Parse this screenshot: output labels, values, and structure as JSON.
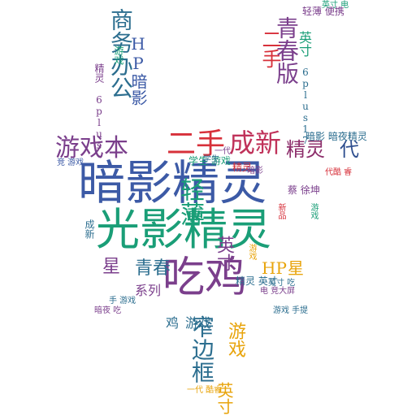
{
  "cloud": {
    "words": [
      {
        "text": "暗影精灵",
        "color": "#3c5aa6"
      },
      {
        "text": "光影精灵",
        "color": "#1a9e77"
      },
      {
        "text": "吃鸡",
        "color": "#7b3f8c"
      },
      {
        "text": "二手",
        "color": "#d7303a"
      },
      {
        "text": "成新",
        "color": "#c0325a"
      },
      {
        "text": "游戏本",
        "color": "#7b3f8c"
      },
      {
        "text": "精灵",
        "color": "#8c2d6a"
      },
      {
        "text": "代",
        "color": "#2f4f8f"
      },
      {
        "text": "轻薄",
        "color": "#1a9e77"
      },
      {
        "text": "青春",
        "color": "#2c6e8f"
      },
      {
        "text": "星",
        "color": "#7b3f8c"
      },
      {
        "text": "HP",
        "color": "#e8a40c"
      },
      {
        "text": "星",
        "color": "#e8a40c"
      },
      {
        "text": "系列",
        "color": "#7b3f8c"
      },
      {
        "text": "英寸",
        "color": "#7b3f8c"
      },
      {
        "text": "窄边框",
        "color": "#2c6e8f"
      },
      {
        "text": "游戏",
        "color": "#e8a40c"
      },
      {
        "text": "英寸",
        "color": "#e8a40c"
      },
      {
        "text": "商务办公",
        "color": "#2c6e8f"
      },
      {
        "text": "HP暗影",
        "color": "#3c5aa6"
      },
      {
        "text": "青春版",
        "color": "#7b3f8c"
      },
      {
        "text": "二手",
        "color": "#d7303a"
      },
      {
        "text": "英寸",
        "color": "#1a9e77"
      },
      {
        "text": "6plus17",
        "color": "#2c6e8f"
      },
      {
        "text": "精灵 6plus",
        "color": "#7b3f8c"
      },
      {
        "text": "游戏",
        "color": "#1a9e77"
      },
      {
        "text": "游戏",
        "color": "#2c6e8f"
      },
      {
        "text": "鸡",
        "color": "#2c6e8f"
      },
      {
        "text": "精灵 英寸",
        "color": "#2c6e8f"
      },
      {
        "text": "学生 游戏",
        "color": "#1a9e77"
      },
      {
        "text": "竞 游戏",
        "color": "#3c5aa6"
      },
      {
        "text": "一代 酷睿",
        "color": "#e8a40c"
      },
      {
        "text": "暗影 暗夜精灵",
        "color": "#2c6e8f"
      },
      {
        "text": "代酷 睿",
        "color": "#d7303a"
      },
      {
        "text": "蔡 徐坤",
        "color": "#7b3f8c"
      },
      {
        "text": "暗夜 吃",
        "color": "#7b3f8c"
      },
      {
        "text": "电 竞大屏",
        "color": "#7b3f8c"
      },
      {
        "text": "轻薄 便携",
        "color": "#7b3f8c"
      },
      {
        "text": "英寸 电",
        "color": "#1a9e77"
      },
      {
        "text": "手 游戏",
        "color": "#2c6e8f"
      },
      {
        "text": "英寸 吃",
        "color": "#2c6e8f"
      },
      {
        "text": "游戏 手提",
        "color": "#2c6e8f"
      },
      {
        "text": "成新",
        "color": "#2c6e8f"
      },
      {
        "text": "精灵",
        "color": "#d7303a"
      },
      {
        "text": "暗影",
        "color": "#7b3f8c"
      },
      {
        "text": "游戏",
        "color": "#1a9e77"
      },
      {
        "text": "一代",
        "color": "#7b3f8c"
      },
      {
        "text": "游戏",
        "color": "#e8a40c"
      },
      {
        "text": "新品",
        "color": "#d7303a"
      },
      {
        "text": "学生",
        "color": "#2c6e8f"
      }
    ]
  }
}
